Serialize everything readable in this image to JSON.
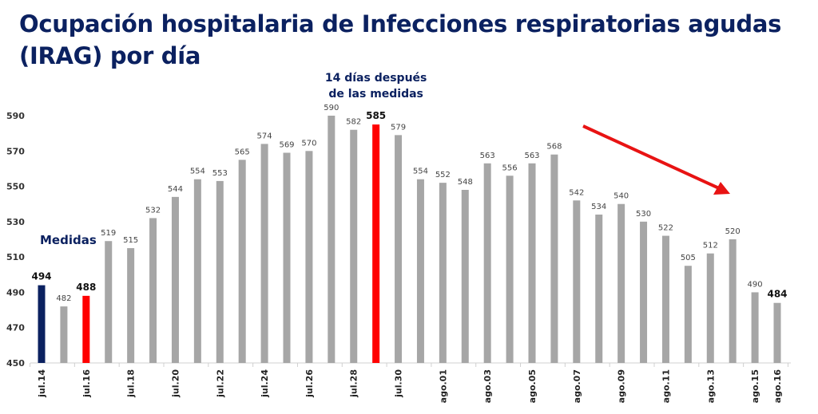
{
  "chart_data": {
    "type": "bar",
    "title": "Ocupación hospitalaria de Infecciones respiratorias agudas (IRAG) por día",
    "xlabel": "",
    "ylabel": "",
    "ylim": [
      450,
      590
    ],
    "yticks": [
      450,
      470,
      490,
      510,
      530,
      550,
      570,
      590
    ],
    "grid": false,
    "categories": [
      "jul.14",
      "jul.15",
      "jul.16",
      "jul.17",
      "jul.18",
      "jul.19",
      "jul.20",
      "jul.21",
      "jul.22",
      "jul.23",
      "jul.24",
      "jul.25",
      "jul.26",
      "jul.27",
      "jul.28",
      "jul.29",
      "jul.30",
      "jul.31",
      "ago.01",
      "ago.02",
      "ago.03",
      "ago.04",
      "ago.05",
      "ago.06",
      "ago.07",
      "ago.08",
      "ago.09",
      "ago.10",
      "ago.11",
      "ago.12",
      "ago.13",
      "ago.14",
      "ago.15",
      "ago.16"
    ],
    "visible_tick_labels": [
      "jul.14",
      "jul.16",
      "jul.18",
      "jul.20",
      "jul.22",
      "jul.24",
      "jul.26",
      "jul.28",
      "jul.30",
      "ago.01",
      "ago.03",
      "ago.05",
      "ago.07",
      "ago.09",
      "ago.11",
      "ago.13",
      "ago.15",
      "ago.16"
    ],
    "values": [
      494,
      482,
      488,
      519,
      515,
      532,
      544,
      554,
      553,
      565,
      574,
      569,
      570,
      590,
      582,
      585,
      579,
      554,
      552,
      548,
      563,
      556,
      563,
      568,
      542,
      534,
      540,
      530,
      522,
      505,
      512,
      520,
      490,
      484
    ],
    "highlights": {
      "jul.14": "#0b2160",
      "jul.16": "#ff0000",
      "jul.29": "#ff0000",
      "ago.16": "bold"
    },
    "default_color": "#a6a6a6",
    "annotations": [
      {
        "text": "Medidas",
        "at": "jul.14"
      },
      {
        "text_lines": [
          "14 días después",
          "de las medidas"
        ],
        "at": "jul.29"
      },
      {
        "type": "arrow",
        "color": "#e81313",
        "direction": "down-right",
        "text": ""
      }
    ]
  }
}
